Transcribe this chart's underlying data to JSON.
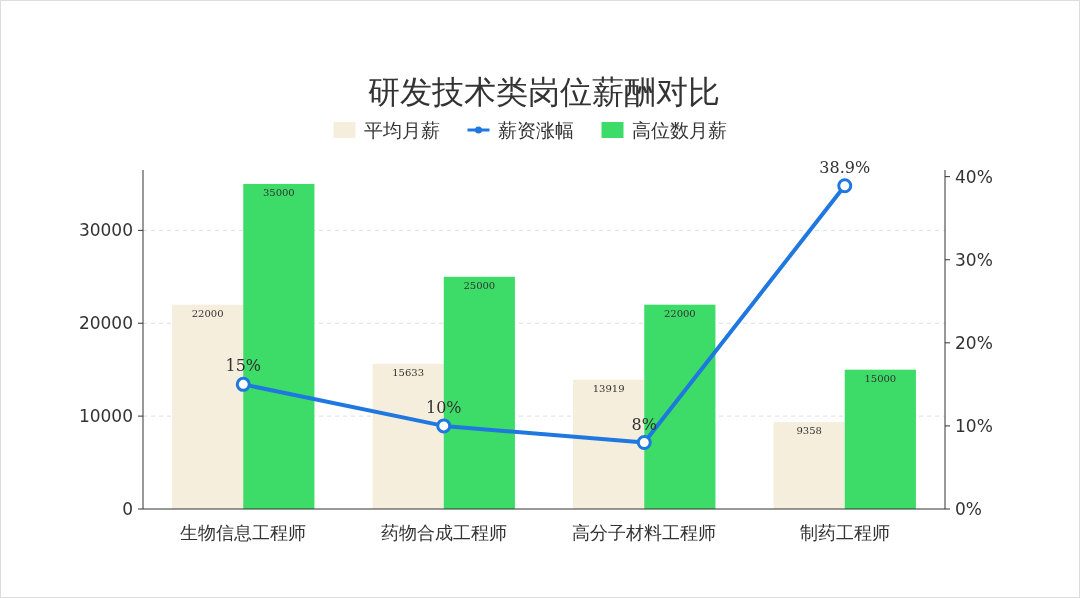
{
  "chart_data": {
    "type": "bar",
    "title": "研发技术类岗位薪酬对比",
    "categories": [
      "生物信息工程师",
      "药物合成工程师",
      "高分子材料工程师",
      "制药工程师"
    ],
    "series": [
      {
        "name": "平均月薪",
        "color": "#f5eedc",
        "values": [
          22000,
          15633,
          13919,
          9358
        ],
        "value_labels": [
          "22000",
          "15633",
          "13919",
          "9358"
        ]
      },
      {
        "name": "薪资涨幅",
        "type": "line",
        "axis": "y2",
        "color": "#1f78e0",
        "marker": "circle",
        "values": [
          15,
          10,
          8,
          38.9
        ],
        "value_labels": [
          "15%",
          "10%",
          "8%",
          "38.9%"
        ]
      },
      {
        "name": "高位数月薪",
        "color": "#3ddc68",
        "values": [
          35000,
          25000,
          22000,
          15000
        ],
        "value_labels": [
          "35000",
          "25000",
          "22000",
          "15000"
        ]
      }
    ],
    "ylim": [
      0,
      36500
    ],
    "yticks": [
      0,
      10000,
      20000,
      30000
    ],
    "y2lim": [
      0,
      40.8
    ],
    "y2ticks": [
      {
        "value": 0,
        "label": "0%"
      },
      {
        "value": 10,
        "label": "10%"
      },
      {
        "value": 20,
        "label": "20%"
      },
      {
        "value": 30,
        "label": "30%"
      },
      {
        "value": 40,
        "label": "40%"
      }
    ],
    "grid": "y",
    "legend": "top"
  }
}
